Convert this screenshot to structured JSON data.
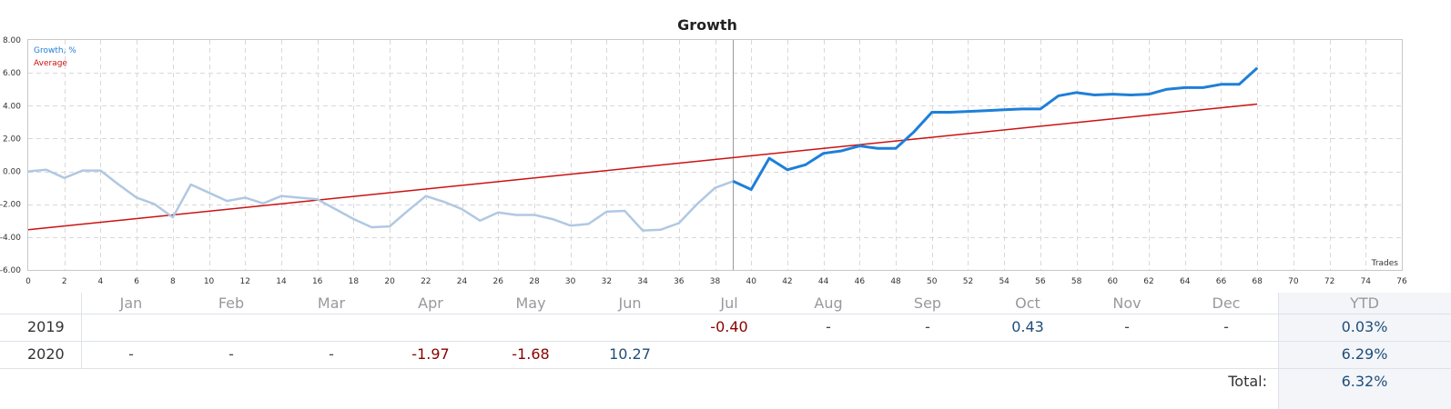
{
  "chart_data": {
    "type": "line",
    "title": "Growth",
    "xlabel": "Trades",
    "ylabel": "",
    "xlim": [
      0,
      76
    ],
    "ylim": [
      -6,
      8
    ],
    "x_ticks": [
      0,
      2,
      4,
      6,
      8,
      10,
      12,
      14,
      16,
      18,
      20,
      22,
      24,
      26,
      28,
      30,
      32,
      34,
      36,
      38,
      40,
      42,
      44,
      46,
      48,
      50,
      52,
      54,
      56,
      58,
      60,
      62,
      64,
      66,
      68,
      70,
      72,
      74,
      76
    ],
    "y_ticks": [
      "8.00",
      "6.00",
      "4.00",
      "2.00",
      "0.00",
      "-2.00",
      "-4.00",
      "-6.00"
    ],
    "y_tick_values": [
      8,
      6,
      4,
      2,
      0,
      -2,
      -4,
      -6
    ],
    "divider_x": 39,
    "legend": [
      {
        "name": "Growth, %",
        "color": "#1e7fd8"
      },
      {
        "name": "Average",
        "color": "#cc1111"
      }
    ],
    "series": [
      {
        "name": "Growth, %",
        "color": "#1e7fd8",
        "history_color": "#b0c8e2",
        "x": [
          0,
          1,
          2,
          3,
          4,
          5,
          6,
          7,
          8,
          9,
          10,
          11,
          12,
          13,
          14,
          15,
          16,
          17,
          18,
          19,
          20,
          21,
          22,
          23,
          24,
          25,
          26,
          27,
          28,
          29,
          30,
          31,
          32,
          33,
          34,
          35,
          36,
          37,
          38,
          39,
          40,
          41,
          42,
          43,
          44,
          45,
          46,
          47,
          48,
          49,
          50,
          51,
          52,
          53,
          54,
          55,
          56,
          57,
          58,
          59,
          60,
          61,
          62,
          63,
          64,
          65,
          66,
          67,
          68
        ],
        "values": [
          0.0,
          0.1,
          -0.4,
          0.05,
          0.05,
          -0.8,
          -1.6,
          -2.0,
          -2.8,
          -0.8,
          -1.3,
          -1.8,
          -1.6,
          -1.95,
          -1.5,
          -1.6,
          -1.7,
          -2.3,
          -2.9,
          -3.4,
          -3.35,
          -2.4,
          -1.5,
          -1.85,
          -2.3,
          -3.0,
          -2.5,
          -2.65,
          -2.65,
          -2.9,
          -3.3,
          -3.2,
          -2.45,
          -2.4,
          -3.6,
          -3.55,
          -3.15,
          -2.0,
          -1.0,
          -0.6,
          -1.1,
          0.8,
          0.1,
          0.4,
          1.1,
          1.25,
          1.55,
          1.4,
          1.4,
          2.4,
          3.6,
          3.6,
          3.65,
          3.7,
          3.75,
          3.8,
          3.8,
          4.6,
          4.8,
          4.65,
          4.7,
          4.65,
          4.7,
          5.0,
          5.1,
          5.1,
          5.3,
          5.3,
          6.3
        ]
      },
      {
        "name": "Average",
        "color": "#cc1111",
        "x": [
          0,
          68
        ],
        "values": [
          -3.55,
          4.1
        ]
      }
    ]
  },
  "table": {
    "months": [
      "Jan",
      "Feb",
      "Mar",
      "Apr",
      "May",
      "Jun",
      "Jul",
      "Aug",
      "Sep",
      "Oct",
      "Nov",
      "Dec"
    ],
    "ytd_header": "YTD",
    "rows": [
      {
        "year": "2019",
        "values": [
          "",
          "",
          "",
          "",
          "",
          "",
          "-0.40",
          "-",
          "-",
          "0.43",
          "-",
          "-"
        ],
        "ytd": "0.03%"
      },
      {
        "year": "2020",
        "values": [
          "-",
          "-",
          "-",
          "-1.97",
          "-1.68",
          "10.27",
          "",
          "",
          "",
          "",
          "",
          ""
        ],
        "ytd": "6.29%"
      }
    ],
    "total_label": "Total:",
    "total_value": "6.32%"
  }
}
